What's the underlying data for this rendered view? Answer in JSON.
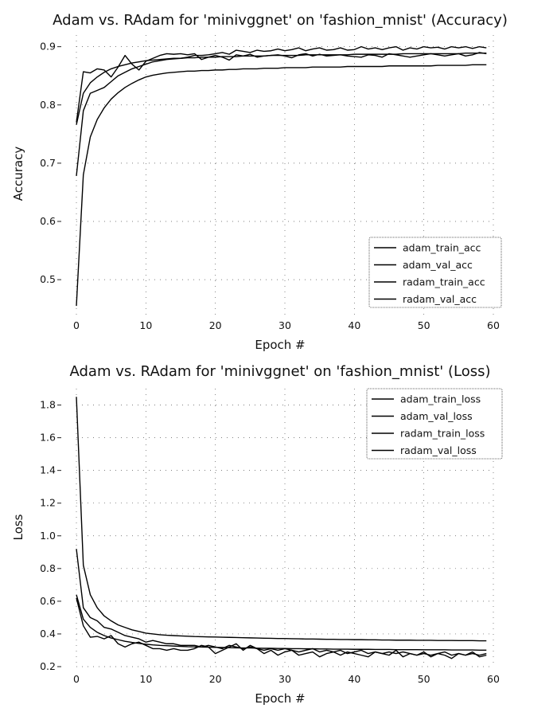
{
  "chart_data": [
    {
      "type": "line",
      "title": "Adam vs. RAdam for 'minivggnet' on 'fashion_mnist' (Accuracy)",
      "xlabel": "Epoch #",
      "ylabel": "Accuracy",
      "xlim": [
        0,
        60
      ],
      "ylim": [
        0.44,
        0.92
      ],
      "xticks": [
        0,
        10,
        20,
        30,
        40,
        50,
        60
      ],
      "yticks": [
        0.5,
        0.6,
        0.7,
        0.8,
        0.9
      ],
      "grid": "dotted",
      "legend_position": "lower-right",
      "x_start": 0,
      "series": [
        {
          "name": "adam_train_acc",
          "values": [
            0.766,
            0.82,
            0.838,
            0.848,
            0.856,
            0.862,
            0.866,
            0.869,
            0.872,
            0.874,
            0.876,
            0.877,
            0.878,
            0.879,
            0.88,
            0.88,
            0.881,
            0.881,
            0.882,
            0.882,
            0.882,
            0.883,
            0.883,
            0.883,
            0.884,
            0.884,
            0.884,
            0.884,
            0.885,
            0.885,
            0.885,
            0.885,
            0.885,
            0.886,
            0.886,
            0.886,
            0.886,
            0.886,
            0.886,
            0.886,
            0.887,
            0.887,
            0.887,
            0.887,
            0.887,
            0.887,
            0.887,
            0.888,
            0.888,
            0.888,
            0.888,
            0.888,
            0.888,
            0.888,
            0.888,
            0.888,
            0.889,
            0.889,
            0.889,
            0.889
          ]
        },
        {
          "name": "adam_val_acc",
          "values": [
            0.77,
            0.857,
            0.855,
            0.862,
            0.86,
            0.848,
            0.865,
            0.885,
            0.87,
            0.86,
            0.875,
            0.88,
            0.885,
            0.888,
            0.887,
            0.888,
            0.886,
            0.888,
            0.878,
            0.882,
            0.885,
            0.882,
            0.877,
            0.886,
            0.884,
            0.887,
            0.882,
            0.884,
            0.885,
            0.886,
            0.884,
            0.881,
            0.886,
            0.888,
            0.884,
            0.887,
            0.884,
            0.885,
            0.886,
            0.884,
            0.883,
            0.882,
            0.886,
            0.885,
            0.882,
            0.888,
            0.886,
            0.884,
            0.882,
            0.884,
            0.886,
            0.888,
            0.886,
            0.884,
            0.886,
            0.888,
            0.884,
            0.886,
            0.89,
            0.888
          ]
        },
        {
          "name": "radam_train_acc",
          "values": [
            0.455,
            0.68,
            0.745,
            0.775,
            0.795,
            0.81,
            0.821,
            0.83,
            0.837,
            0.843,
            0.848,
            0.851,
            0.853,
            0.855,
            0.856,
            0.857,
            0.858,
            0.858,
            0.859,
            0.859,
            0.86,
            0.86,
            0.861,
            0.861,
            0.862,
            0.862,
            0.862,
            0.863,
            0.863,
            0.863,
            0.864,
            0.864,
            0.864,
            0.864,
            0.865,
            0.865,
            0.865,
            0.865,
            0.865,
            0.866,
            0.866,
            0.866,
            0.866,
            0.866,
            0.866,
            0.867,
            0.867,
            0.867,
            0.867,
            0.867,
            0.867,
            0.867,
            0.868,
            0.868,
            0.868,
            0.868,
            0.868,
            0.869,
            0.869,
            0.869
          ]
        },
        {
          "name": "radam_val_acc",
          "values": [
            0.678,
            0.79,
            0.82,
            0.825,
            0.83,
            0.84,
            0.85,
            0.856,
            0.862,
            0.866,
            0.87,
            0.874,
            0.876,
            0.878,
            0.879,
            0.88,
            0.882,
            0.885,
            0.885,
            0.886,
            0.888,
            0.89,
            0.887,
            0.894,
            0.892,
            0.89,
            0.894,
            0.892,
            0.893,
            0.896,
            0.893,
            0.895,
            0.898,
            0.893,
            0.896,
            0.898,
            0.894,
            0.895,
            0.898,
            0.894,
            0.895,
            0.9,
            0.896,
            0.898,
            0.895,
            0.898,
            0.9,
            0.894,
            0.898,
            0.896,
            0.9,
            0.898,
            0.899,
            0.896,
            0.9,
            0.898,
            0.9,
            0.897,
            0.9,
            0.898
          ]
        }
      ]
    },
    {
      "type": "line",
      "title": "Adam vs. RAdam for 'minivggnet' on 'fashion_mnist' (Loss)",
      "xlabel": "Epoch #",
      "ylabel": "Loss",
      "xlim": [
        0,
        60
      ],
      "ylim": [
        0.2,
        1.9
      ],
      "xticks": [
        0,
        10,
        20,
        30,
        40,
        50,
        60
      ],
      "yticks": [
        0.2,
        0.4,
        0.6,
        0.8,
        1.0,
        1.2,
        1.4,
        1.6,
        1.8
      ],
      "grid": "dotted",
      "legend_position": "top-right",
      "x_start": 0,
      "series": [
        {
          "name": "adam_train_loss",
          "values": [
            0.64,
            0.49,
            0.44,
            0.41,
            0.39,
            0.375,
            0.365,
            0.355,
            0.348,
            0.342,
            0.337,
            0.333,
            0.33,
            0.328,
            0.326,
            0.324,
            0.322,
            0.321,
            0.32,
            0.319,
            0.318,
            0.317,
            0.316,
            0.315,
            0.314,
            0.314,
            0.313,
            0.312,
            0.312,
            0.311,
            0.311,
            0.31,
            0.31,
            0.309,
            0.309,
            0.308,
            0.308,
            0.307,
            0.307,
            0.307,
            0.306,
            0.306,
            0.306,
            0.305,
            0.305,
            0.305,
            0.304,
            0.304,
            0.304,
            0.304,
            0.303,
            0.303,
            0.303,
            0.303,
            0.302,
            0.302,
            0.302,
            0.302,
            0.301,
            0.301
          ]
        },
        {
          "name": "adam_val_loss",
          "values": [
            0.62,
            0.45,
            0.38,
            0.385,
            0.37,
            0.39,
            0.34,
            0.32,
            0.34,
            0.35,
            0.33,
            0.31,
            0.31,
            0.3,
            0.31,
            0.3,
            0.3,
            0.31,
            0.33,
            0.32,
            0.28,
            0.3,
            0.32,
            0.34,
            0.3,
            0.33,
            0.31,
            0.28,
            0.3,
            0.27,
            0.29,
            0.3,
            0.27,
            0.28,
            0.29,
            0.26,
            0.28,
            0.29,
            0.27,
            0.29,
            0.28,
            0.27,
            0.26,
            0.29,
            0.28,
            0.27,
            0.3,
            0.26,
            0.28,
            0.27,
            0.29,
            0.26,
            0.28,
            0.27,
            0.25,
            0.28,
            0.27,
            0.29,
            0.26,
            0.27
          ]
        },
        {
          "name": "radam_train_loss",
          "values": [
            1.85,
            0.82,
            0.64,
            0.56,
            0.51,
            0.48,
            0.455,
            0.44,
            0.425,
            0.415,
            0.405,
            0.4,
            0.395,
            0.392,
            0.39,
            0.388,
            0.386,
            0.384,
            0.383,
            0.382,
            0.381,
            0.38,
            0.379,
            0.378,
            0.377,
            0.376,
            0.375,
            0.374,
            0.373,
            0.372,
            0.372,
            0.371,
            0.37,
            0.369,
            0.369,
            0.368,
            0.367,
            0.367,
            0.366,
            0.366,
            0.365,
            0.365,
            0.364,
            0.364,
            0.363,
            0.363,
            0.362,
            0.362,
            0.362,
            0.361,
            0.361,
            0.361,
            0.36,
            0.36,
            0.36,
            0.359,
            0.359,
            0.359,
            0.358,
            0.358
          ]
        },
        {
          "name": "radam_val_loss",
          "values": [
            0.92,
            0.56,
            0.5,
            0.48,
            0.44,
            0.43,
            0.41,
            0.39,
            0.38,
            0.37,
            0.35,
            0.36,
            0.35,
            0.34,
            0.34,
            0.33,
            0.33,
            0.33,
            0.32,
            0.33,
            0.32,
            0.31,
            0.33,
            0.32,
            0.31,
            0.32,
            0.31,
            0.3,
            0.31,
            0.3,
            0.31,
            0.3,
            0.29,
            0.3,
            0.31,
            0.29,
            0.3,
            0.29,
            0.3,
            0.28,
            0.29,
            0.3,
            0.28,
            0.29,
            0.28,
            0.29,
            0.28,
            0.29,
            0.28,
            0.27,
            0.28,
            0.27,
            0.28,
            0.29,
            0.27,
            0.28,
            0.27,
            0.28,
            0.27,
            0.28
          ]
        }
      ]
    }
  ]
}
